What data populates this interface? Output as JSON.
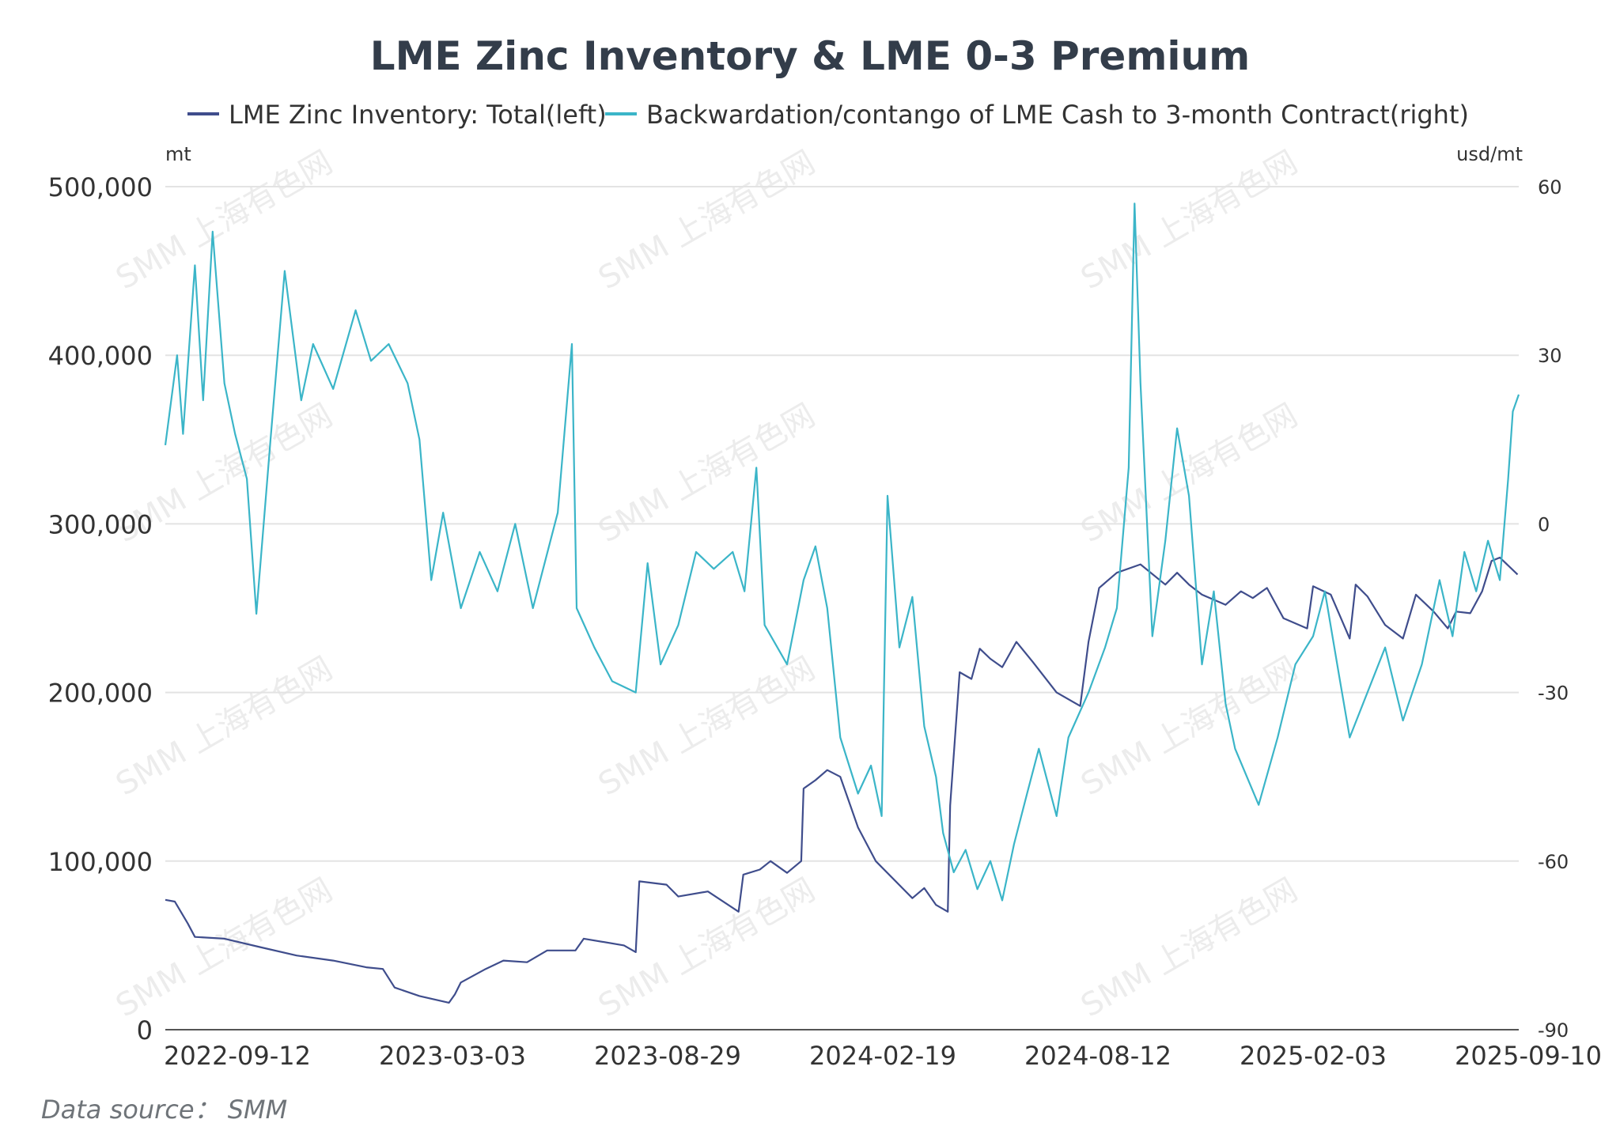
{
  "chart_data": {
    "type": "line",
    "title": "LME Zinc Inventory & LME 0-3 Premium",
    "y_left_unit": "mt",
    "y_right_unit": "usd/mt",
    "x_tick_labels": [
      "2022-09-12",
      "2023-03-03",
      "2023-08-29",
      "2024-02-19",
      "2024-08-12",
      "2025-02-03",
      "2025-09-10"
    ],
    "y_left_ticks": [
      "0",
      "100,000",
      "200,000",
      "300,000",
      "400,000",
      "500,000"
    ],
    "y_right_ticks": [
      "-90",
      "-60",
      "-30",
      "0",
      "30",
      "60"
    ],
    "y_left_range": [
      0,
      500000
    ],
    "y_right_range": [
      -90,
      60
    ],
    "x_range": [
      "2022-09-12",
      "2025-10-31"
    ],
    "grid": true,
    "legend_position": "top",
    "source_label": "Data source： SMM",
    "watermark": "SMM 上海有色网",
    "colors": {
      "inventory": "#3f4d8c",
      "premium": "#3bb5c8",
      "grid": "#e3e3e3",
      "text": "#333333",
      "title": "#333d4a"
    },
    "series": [
      {
        "name": "LME Zinc Inventory: Total(left)",
        "axis": "left",
        "points": [
          [
            "2022-09-12",
            77000
          ],
          [
            "2022-09-20",
            76000
          ],
          [
            "2022-10-01",
            63000
          ],
          [
            "2022-10-07",
            55000
          ],
          [
            "2022-11-01",
            54000
          ],
          [
            "2022-12-01",
            49000
          ],
          [
            "2023-01-01",
            44000
          ],
          [
            "2023-02-01",
            41000
          ],
          [
            "2023-03-01",
            37000
          ],
          [
            "2023-03-15",
            36000
          ],
          [
            "2023-03-25",
            25000
          ],
          [
            "2023-04-15",
            20000
          ],
          [
            "2023-05-10",
            16000
          ],
          [
            "2023-05-15",
            21000
          ],
          [
            "2023-05-20",
            28000
          ],
          [
            "2023-06-10",
            36000
          ],
          [
            "2023-06-25",
            41000
          ],
          [
            "2023-07-15",
            40000
          ],
          [
            "2023-08-01",
            47000
          ],
          [
            "2023-08-25",
            47000
          ],
          [
            "2023-09-01",
            54000
          ],
          [
            "2023-10-05",
            50000
          ],
          [
            "2023-10-15",
            46000
          ],
          [
            "2023-10-18",
            88000
          ],
          [
            "2023-11-10",
            86000
          ],
          [
            "2023-11-20",
            79000
          ],
          [
            "2023-12-15",
            82000
          ],
          [
            "2024-01-10",
            70000
          ],
          [
            "2024-01-14",
            92000
          ],
          [
            "2024-01-28",
            95000
          ],
          [
            "2024-02-06",
            100000
          ],
          [
            "2024-02-20",
            93000
          ],
          [
            "2024-03-03",
            100000
          ],
          [
            "2024-03-05",
            143000
          ],
          [
            "2024-03-15",
            148000
          ],
          [
            "2024-03-25",
            154000
          ],
          [
            "2024-04-05",
            150000
          ],
          [
            "2024-04-20",
            120000
          ],
          [
            "2024-05-05",
            100000
          ],
          [
            "2024-06-05",
            78000
          ],
          [
            "2024-06-15",
            84000
          ],
          [
            "2024-06-25",
            74000
          ],
          [
            "2024-07-05",
            70000
          ],
          [
            "2024-07-07",
            133000
          ],
          [
            "2024-07-15",
            212000
          ],
          [
            "2024-07-25",
            208000
          ],
          [
            "2024-08-01",
            226000
          ],
          [
            "2024-08-10",
            220000
          ],
          [
            "2024-08-20",
            215000
          ],
          [
            "2024-09-01",
            230000
          ],
          [
            "2024-09-15",
            218000
          ],
          [
            "2024-10-05",
            200000
          ],
          [
            "2024-10-25",
            192000
          ],
          [
            "2024-11-01",
            230000
          ],
          [
            "2024-11-10",
            262000
          ],
          [
            "2024-11-25",
            271000
          ],
          [
            "2024-12-15",
            276000
          ],
          [
            "2025-01-05",
            264000
          ],
          [
            "2025-01-15",
            271000
          ],
          [
            "2025-01-25",
            264000
          ],
          [
            "2025-02-05",
            258000
          ],
          [
            "2025-02-25",
            252000
          ],
          [
            "2025-03-10",
            260000
          ],
          [
            "2025-03-20",
            256000
          ],
          [
            "2025-04-01",
            262000
          ],
          [
            "2025-04-15",
            244000
          ],
          [
            "2025-05-05",
            238000
          ],
          [
            "2025-05-10",
            263000
          ],
          [
            "2025-05-25",
            258000
          ],
          [
            "2025-06-10",
            232000
          ],
          [
            "2025-06-15",
            264000
          ],
          [
            "2025-06-25",
            257000
          ],
          [
            "2025-07-10",
            240000
          ],
          [
            "2025-07-25",
            232000
          ],
          [
            "2025-08-05",
            258000
          ],
          [
            "2025-08-20",
            248000
          ],
          [
            "2025-09-01",
            238000
          ],
          [
            "2025-09-08",
            248000
          ],
          [
            "2025-09-20",
            247000
          ],
          [
            "2025-09-30",
            260000
          ],
          [
            "2025-10-08",
            278000
          ],
          [
            "2025-10-15",
            280000
          ],
          [
            "2025-10-30",
            270000
          ]
        ]
      },
      {
        "name": "Backwardation/contango of LME Cash to 3-month Contract(right)",
        "axis": "right",
        "points": [
          [
            "2022-09-12",
            14
          ],
          [
            "2022-09-22",
            30
          ],
          [
            "2022-09-27",
            16
          ],
          [
            "2022-10-07",
            46
          ],
          [
            "2022-10-14",
            22
          ],
          [
            "2022-10-22",
            52
          ],
          [
            "2022-11-01",
            25
          ],
          [
            "2022-11-10",
            16
          ],
          [
            "2022-11-20",
            8
          ],
          [
            "2022-11-28",
            -16
          ],
          [
            "2022-12-10",
            15
          ],
          [
            "2022-12-22",
            45
          ],
          [
            "2023-01-05",
            22
          ],
          [
            "2023-01-15",
            32
          ],
          [
            "2023-02-01",
            24
          ],
          [
            "2023-02-20",
            38
          ],
          [
            "2023-03-05",
            29
          ],
          [
            "2023-03-20",
            32
          ],
          [
            "2023-04-05",
            25
          ],
          [
            "2023-04-15",
            15
          ],
          [
            "2023-04-25",
            -10
          ],
          [
            "2023-05-05",
            2
          ],
          [
            "2023-05-20",
            -15
          ],
          [
            "2023-06-05",
            -5
          ],
          [
            "2023-06-20",
            -12
          ],
          [
            "2023-07-05",
            0
          ],
          [
            "2023-07-20",
            -15
          ],
          [
            "2023-08-10",
            2
          ],
          [
            "2023-08-22",
            32
          ],
          [
            "2023-08-26",
            -15
          ],
          [
            "2023-09-10",
            -22
          ],
          [
            "2023-09-25",
            -28
          ],
          [
            "2023-10-15",
            -30
          ],
          [
            "2023-10-25",
            -7
          ],
          [
            "2023-11-05",
            -25
          ],
          [
            "2023-11-20",
            -18
          ],
          [
            "2023-12-05",
            -5
          ],
          [
            "2023-12-20",
            -8
          ],
          [
            "2024-01-05",
            -5
          ],
          [
            "2024-01-15",
            -12
          ],
          [
            "2024-01-25",
            10
          ],
          [
            "2024-02-01",
            -18
          ],
          [
            "2024-02-20",
            -25
          ],
          [
            "2024-03-05",
            -10
          ],
          [
            "2024-03-15",
            -4
          ],
          [
            "2024-03-25",
            -15
          ],
          [
            "2024-04-05",
            -38
          ],
          [
            "2024-04-20",
            -48
          ],
          [
            "2024-05-01",
            -43
          ],
          [
            "2024-05-10",
            -52
          ],
          [
            "2024-05-15",
            5
          ],
          [
            "2024-05-25",
            -22
          ],
          [
            "2024-06-05",
            -13
          ],
          [
            "2024-06-15",
            -36
          ],
          [
            "2024-06-25",
            -45
          ],
          [
            "2024-07-01",
            -55
          ],
          [
            "2024-07-10",
            -62
          ],
          [
            "2024-07-20",
            -58
          ],
          [
            "2024-07-30",
            -65
          ],
          [
            "2024-08-10",
            -60
          ],
          [
            "2024-08-20",
            -67
          ],
          [
            "2024-08-30",
            -57
          ],
          [
            "2024-09-10",
            -48
          ],
          [
            "2024-09-20",
            -40
          ],
          [
            "2024-10-05",
            -52
          ],
          [
            "2024-10-15",
            -38
          ],
          [
            "2024-11-01",
            -30
          ],
          [
            "2024-11-15",
            -22
          ],
          [
            "2024-11-25",
            -15
          ],
          [
            "2024-12-05",
            10
          ],
          [
            "2024-12-10",
            57
          ],
          [
            "2024-12-15",
            25
          ],
          [
            "2024-12-25",
            -20
          ],
          [
            "2025-01-05",
            -3
          ],
          [
            "2025-01-15",
            17
          ],
          [
            "2025-01-25",
            5
          ],
          [
            "2025-02-05",
            -25
          ],
          [
            "2025-02-15",
            -12
          ],
          [
            "2025-02-25",
            -32
          ],
          [
            "2025-03-05",
            -40
          ],
          [
            "2025-03-15",
            -45
          ],
          [
            "2025-03-25",
            -50
          ],
          [
            "2025-04-10",
            -38
          ],
          [
            "2025-04-25",
            -25
          ],
          [
            "2025-05-10",
            -20
          ],
          [
            "2025-05-20",
            -12
          ],
          [
            "2025-06-01",
            -27
          ],
          [
            "2025-06-10",
            -38
          ],
          [
            "2025-06-25",
            -30
          ],
          [
            "2025-07-10",
            -22
          ],
          [
            "2025-07-25",
            -35
          ],
          [
            "2025-08-10",
            -25
          ],
          [
            "2025-08-25",
            -10
          ],
          [
            "2025-09-05",
            -20
          ],
          [
            "2025-09-15",
            -5
          ],
          [
            "2025-09-25",
            -12
          ],
          [
            "2025-10-05",
            -3
          ],
          [
            "2025-10-15",
            -10
          ],
          [
            "2025-10-22",
            8
          ],
          [
            "2025-10-26",
            20
          ],
          [
            "2025-10-31",
            23
          ]
        ]
      }
    ]
  }
}
